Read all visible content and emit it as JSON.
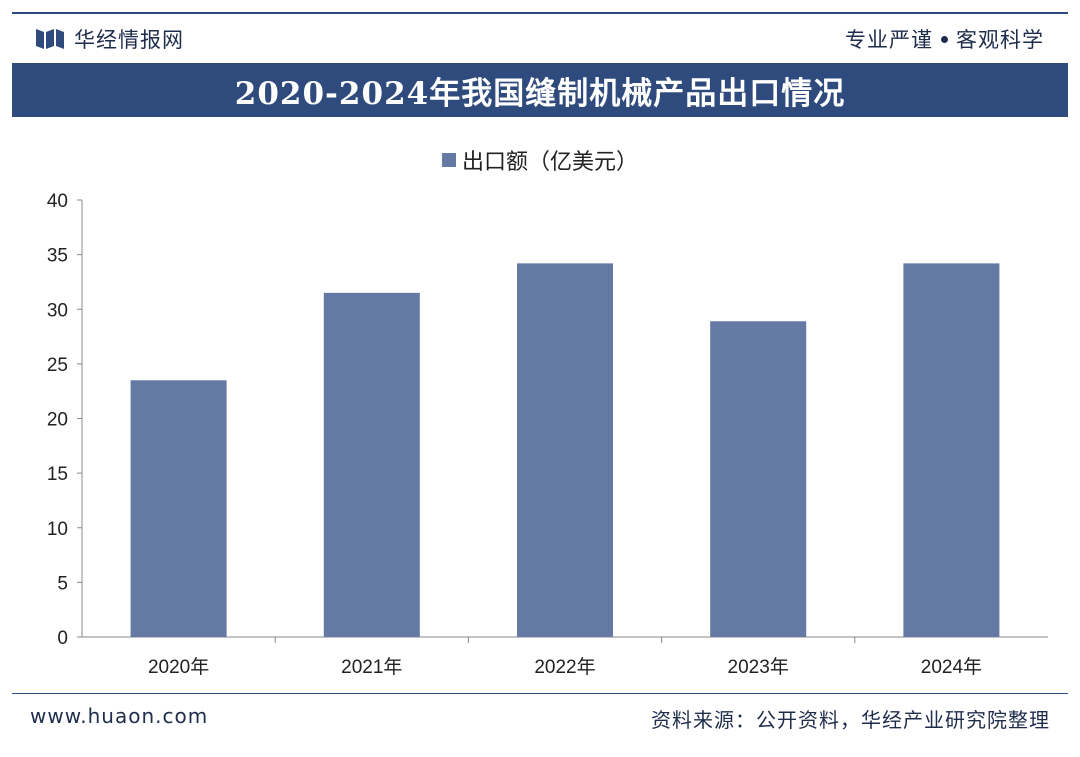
{
  "header": {
    "brand_name": "华经情报网",
    "motto_left": "专业严谨",
    "motto_right": "客观科学"
  },
  "colors": {
    "header_bar": "#2f4a7c",
    "bar_fill": "#6479a4",
    "axis": "#888888"
  },
  "chart_data": {
    "type": "bar",
    "title": "2020-2024年我国缝制机械产品出口情况",
    "categories": [
      "2020年",
      "2021年",
      "2022年",
      "2023年",
      "2024年"
    ],
    "series": [
      {
        "name": "出口额（亿美元）",
        "values": [
          23.5,
          31.5,
          34.2,
          28.9,
          34.2
        ]
      }
    ],
    "xlabel": "",
    "ylabel": "",
    "ylim": [
      0,
      40
    ],
    "yticks": [
      0,
      5,
      10,
      15,
      20,
      25,
      30,
      35,
      40
    ],
    "grid": false,
    "legend_position": "top-center"
  },
  "footer": {
    "website": "www.huaon.com",
    "source": "资料来源：公开资料，华经产业研究院整理"
  }
}
